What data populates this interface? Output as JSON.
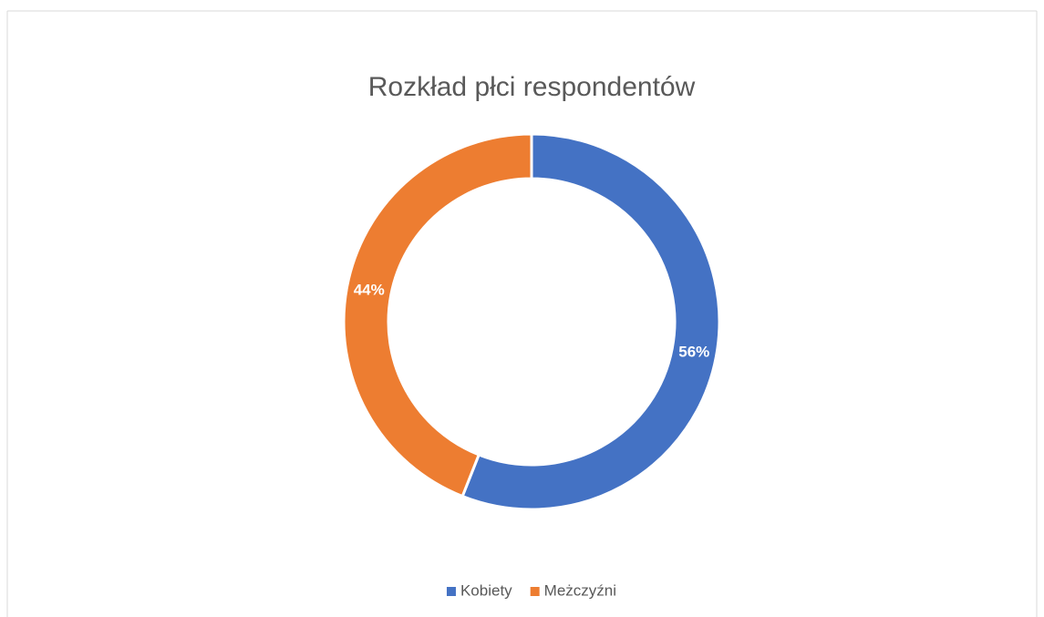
{
  "chart_data": {
    "type": "donut",
    "title": "Rozkład płci respondentów",
    "categories": [
      "Kobiety",
      "Meżczyźni"
    ],
    "values": [
      56,
      44
    ],
    "value_labels": [
      "56%",
      "44%"
    ],
    "colors": [
      "#4472c4",
      "#ed7d31"
    ],
    "legend": "bottom"
  }
}
